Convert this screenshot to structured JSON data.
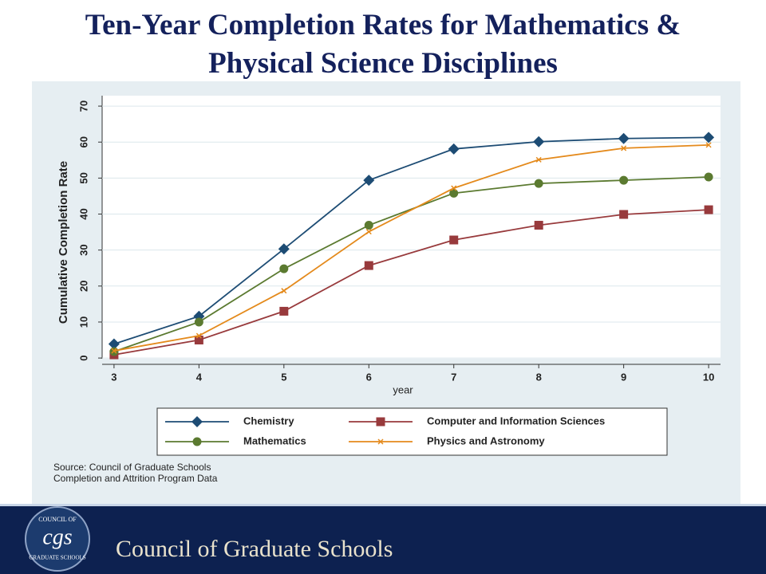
{
  "chart_data": {
    "type": "line",
    "title": "Ten-Year Completion Rates for Mathematics & Physical Science Disciplines",
    "x_label": "year",
    "y_label": "Cumulative Completion Rate",
    "x": [
      3,
      4,
      5,
      6,
      7,
      8,
      9,
      10
    ],
    "series": [
      {
        "name": "Chemistry",
        "color": "#1d4c74",
        "marker": "diamond",
        "values": [
          3.9,
          11.6,
          30.3,
          49.4,
          58.1,
          60.1,
          61.0,
          61.3
        ]
      },
      {
        "name": "Computer and Information Sciences",
        "color": "#983a3c",
        "marker": "square",
        "values": [
          0.9,
          5.0,
          13.0,
          25.7,
          32.8,
          36.9,
          39.9,
          41.2
        ]
      },
      {
        "name": "Mathematics",
        "color": "#5b7a30",
        "marker": "circle",
        "values": [
          1.8,
          10.0,
          24.8,
          36.9,
          45.8,
          48.5,
          49.4,
          50.3
        ]
      },
      {
        "name": "Physics and Astronomy",
        "color": "#e48a1c",
        "marker": "x",
        "values": [
          2.0,
          6.2,
          18.7,
          35.1,
          47.2,
          55.1,
          58.3,
          59.2
        ]
      }
    ],
    "xlim": [
      2.86,
      10.14
    ],
    "xticks": [
      3,
      4,
      5,
      6,
      7,
      8,
      9,
      10
    ],
    "ylim": [
      -0.2,
      72.9
    ],
    "yticks": [
      0,
      10,
      20,
      30,
      40,
      50,
      60,
      70
    ],
    "grid": true,
    "legend": "bottom",
    "notes": [
      "Source: Council of Graduate Schools",
      "Completion and Attrition Program Data"
    ]
  },
  "footer": {
    "organization": "Council of Graduate Schools",
    "logo_top": "COUNCIL OF",
    "logo_mark": "cgs",
    "logo_bottom": "GRADUATE SCHOOLS"
  }
}
